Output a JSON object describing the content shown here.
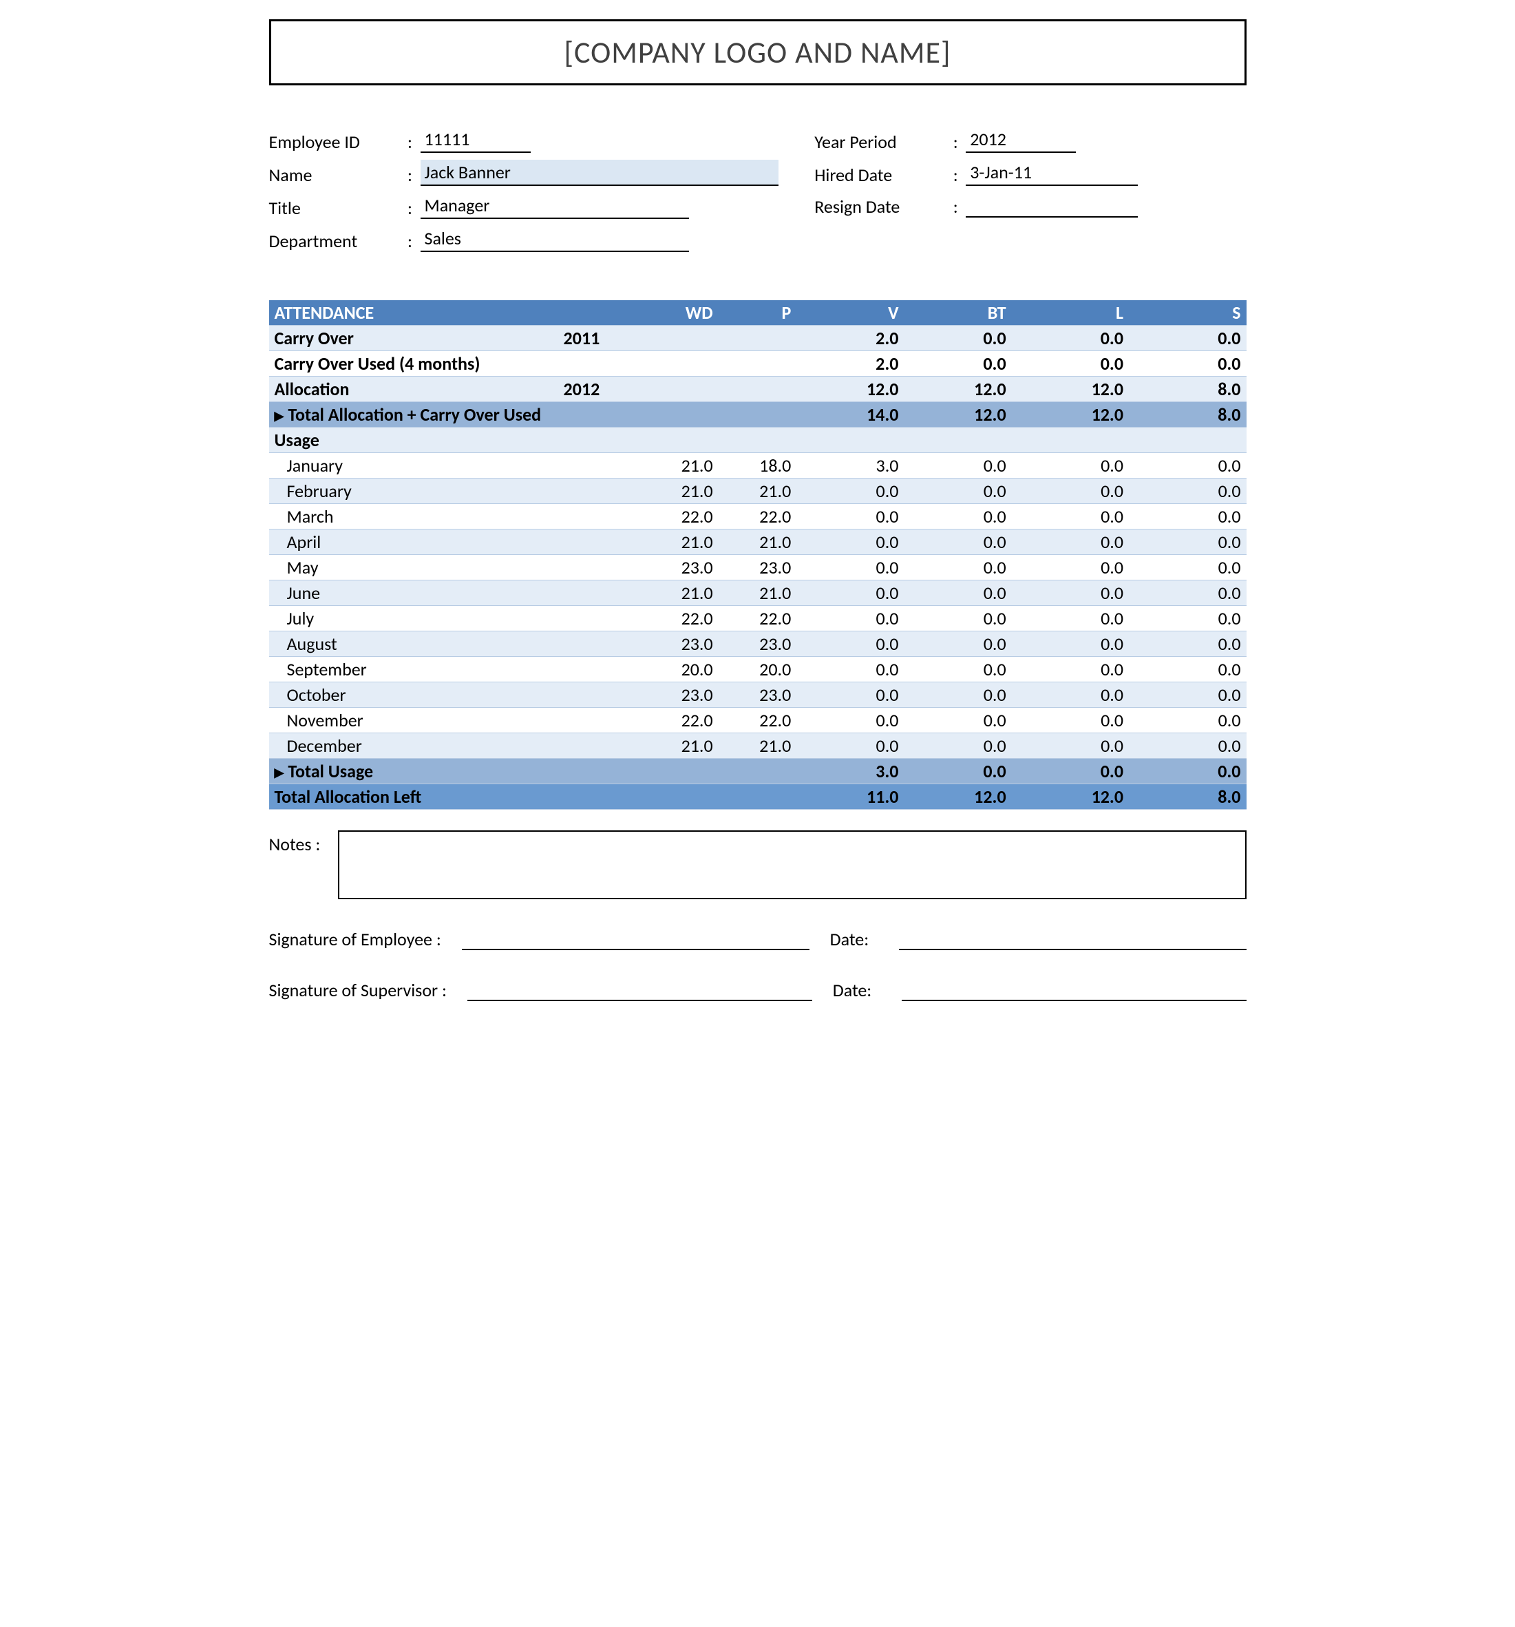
{
  "logo_text": "[COMPANY LOGO AND NAME]",
  "header": {
    "left": {
      "employee_id_label": "Employee ID",
      "employee_id": "11111",
      "name_label": "Name",
      "name": "Jack Banner",
      "title_label": "Title",
      "title": "Manager",
      "department_label": "Department",
      "department": "Sales"
    },
    "right": {
      "year_period_label": "Year Period",
      "year_period": "2012",
      "hired_date_label": "Hired Date",
      "hired_date": "3-Jan-11",
      "resign_date_label": "Resign Date",
      "resign_date": ""
    }
  },
  "attendance": {
    "colors": {
      "header_bg": "#4f81bd",
      "subtotal_bg": "#95b3d7",
      "total_bg": "#6a9ad0",
      "stripe_light": "#ffffff",
      "stripe_dark": "#e4edf7",
      "border": "#b8cce4"
    },
    "headers": {
      "attendance": "ATTENDANCE",
      "wd": "WD",
      "p": "P",
      "v": "V",
      "bt": "BT",
      "l": "L",
      "s": "S"
    },
    "carry_over_label": "Carry Over",
    "carry_over_year": "2011",
    "carry_over": {
      "v": "2.0",
      "bt": "0.0",
      "l": "0.0",
      "s": "0.0"
    },
    "carry_over_used_label": "Carry Over Used (4 months)",
    "carry_over_used": {
      "v": "2.0",
      "bt": "0.0",
      "l": "0.0",
      "s": "0.0"
    },
    "allocation_label": "Allocation",
    "allocation_year": "2012",
    "allocation": {
      "v": "12.0",
      "bt": "12.0",
      "l": "12.0",
      "s": "8.0"
    },
    "total_alloc_label": "Total Allocation + Carry Over Used",
    "total_alloc": {
      "v": "14.0",
      "bt": "12.0",
      "l": "12.0",
      "s": "8.0"
    },
    "usage_label": "Usage",
    "months": [
      {
        "name": "January",
        "wd": "21.0",
        "p": "18.0",
        "v": "3.0",
        "bt": "0.0",
        "l": "0.0",
        "s": "0.0"
      },
      {
        "name": "February",
        "wd": "21.0",
        "p": "21.0",
        "v": "0.0",
        "bt": "0.0",
        "l": "0.0",
        "s": "0.0"
      },
      {
        "name": "March",
        "wd": "22.0",
        "p": "22.0",
        "v": "0.0",
        "bt": "0.0",
        "l": "0.0",
        "s": "0.0"
      },
      {
        "name": "April",
        "wd": "21.0",
        "p": "21.0",
        "v": "0.0",
        "bt": "0.0",
        "l": "0.0",
        "s": "0.0"
      },
      {
        "name": "May",
        "wd": "23.0",
        "p": "23.0",
        "v": "0.0",
        "bt": "0.0",
        "l": "0.0",
        "s": "0.0"
      },
      {
        "name": "June",
        "wd": "21.0",
        "p": "21.0",
        "v": "0.0",
        "bt": "0.0",
        "l": "0.0",
        "s": "0.0"
      },
      {
        "name": "July",
        "wd": "22.0",
        "p": "22.0",
        "v": "0.0",
        "bt": "0.0",
        "l": "0.0",
        "s": "0.0"
      },
      {
        "name": "August",
        "wd": "23.0",
        "p": "23.0",
        "v": "0.0",
        "bt": "0.0",
        "l": "0.0",
        "s": "0.0"
      },
      {
        "name": "September",
        "wd": "20.0",
        "p": "20.0",
        "v": "0.0",
        "bt": "0.0",
        "l": "0.0",
        "s": "0.0"
      },
      {
        "name": "October",
        "wd": "23.0",
        "p": "23.0",
        "v": "0.0",
        "bt": "0.0",
        "l": "0.0",
        "s": "0.0"
      },
      {
        "name": "November",
        "wd": "22.0",
        "p": "22.0",
        "v": "0.0",
        "bt": "0.0",
        "l": "0.0",
        "s": "0.0"
      },
      {
        "name": "December",
        "wd": "21.0",
        "p": "21.0",
        "v": "0.0",
        "bt": "0.0",
        "l": "0.0",
        "s": "0.0"
      }
    ],
    "total_usage_label": "Total Usage",
    "total_usage": {
      "v": "3.0",
      "bt": "0.0",
      "l": "0.0",
      "s": "0.0"
    },
    "total_left_label": "Total Allocation Left",
    "total_left": {
      "v": "11.0",
      "bt": "12.0",
      "l": "12.0",
      "s": "8.0"
    }
  },
  "notes_label": "Notes :",
  "signatures": {
    "employee_label": "Signature of Employee :",
    "supervisor_label": "Signature of Supervisor :",
    "date_label": "Date:"
  }
}
